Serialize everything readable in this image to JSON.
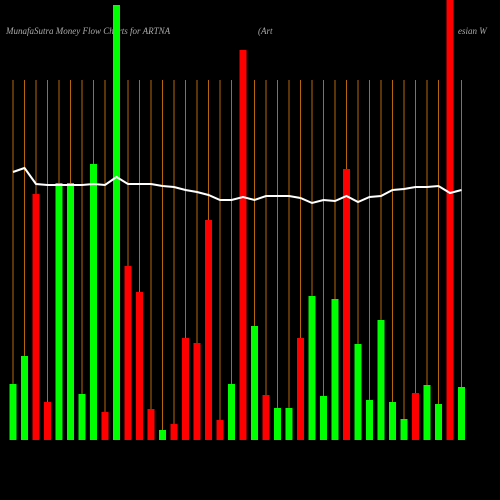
{
  "chart_data": {
    "type": "bar",
    "title_parts": [
      "MunafaSutra  Money Flow  Charts for ARTNA",
      "(Art",
      "esian  W"
    ],
    "categories": [
      null,
      null,
      null,
      null,
      null,
      null,
      null,
      null,
      null,
      null,
      null,
      null,
      null,
      null,
      null,
      null,
      null,
      null,
      null,
      null,
      null,
      null,
      null,
      null,
      null,
      null,
      null,
      null,
      null,
      null,
      null,
      null,
      null,
      null,
      null,
      null,
      null,
      null,
      null,
      null
    ],
    "values": [
      56,
      84,
      246,
      38,
      257,
      257,
      46,
      276,
      28,
      435,
      174,
      148,
      31,
      10,
      16,
      102,
      97,
      220,
      20,
      56,
      390,
      114,
      45,
      32,
      32,
      102,
      144,
      44,
      141,
      271,
      96,
      40,
      120,
      38,
      21,
      47,
      55,
      36,
      440,
      53
    ],
    "colors": [
      "#00ff00",
      "#00ff00",
      "#ff0000",
      "#ff0000",
      "#00ff00",
      "#00ff00",
      "#00ff00",
      "#00ff00",
      "#ff0000",
      "#00ff00",
      "#ff0000",
      "#ff0000",
      "#ff0000",
      "#00ff00",
      "#ff0000",
      "#ff0000",
      "#ff0000",
      "#ff0000",
      "#ff0000",
      "#00ff00",
      "#ff0000",
      "#00ff00",
      "#ff0000",
      "#00ff00",
      "#00ff00",
      "#ff0000",
      "#00ff00",
      "#00ff00",
      "#00ff00",
      "#ff0000",
      "#00ff00",
      "#00ff00",
      "#00ff00",
      "#00ff00",
      "#00ff00",
      "#ff0000",
      "#00ff00",
      "#00ff00",
      "#ff0000",
      "#00ff00"
    ],
    "line": {
      "color": "#ffffff",
      "values": [
        268,
        272,
        256,
        255,
        255,
        255,
        255,
        256,
        255,
        263,
        256,
        256,
        256,
        254,
        253,
        250,
        248,
        245,
        240,
        240,
        243,
        240,
        244,
        244,
        244,
        242,
        237,
        240,
        239,
        244,
        238,
        243,
        244,
        250,
        251,
        253,
        253,
        254,
        247,
        250
      ]
    },
    "ylim": [
      0,
      440
    ],
    "grid_color": "#b8660b"
  }
}
